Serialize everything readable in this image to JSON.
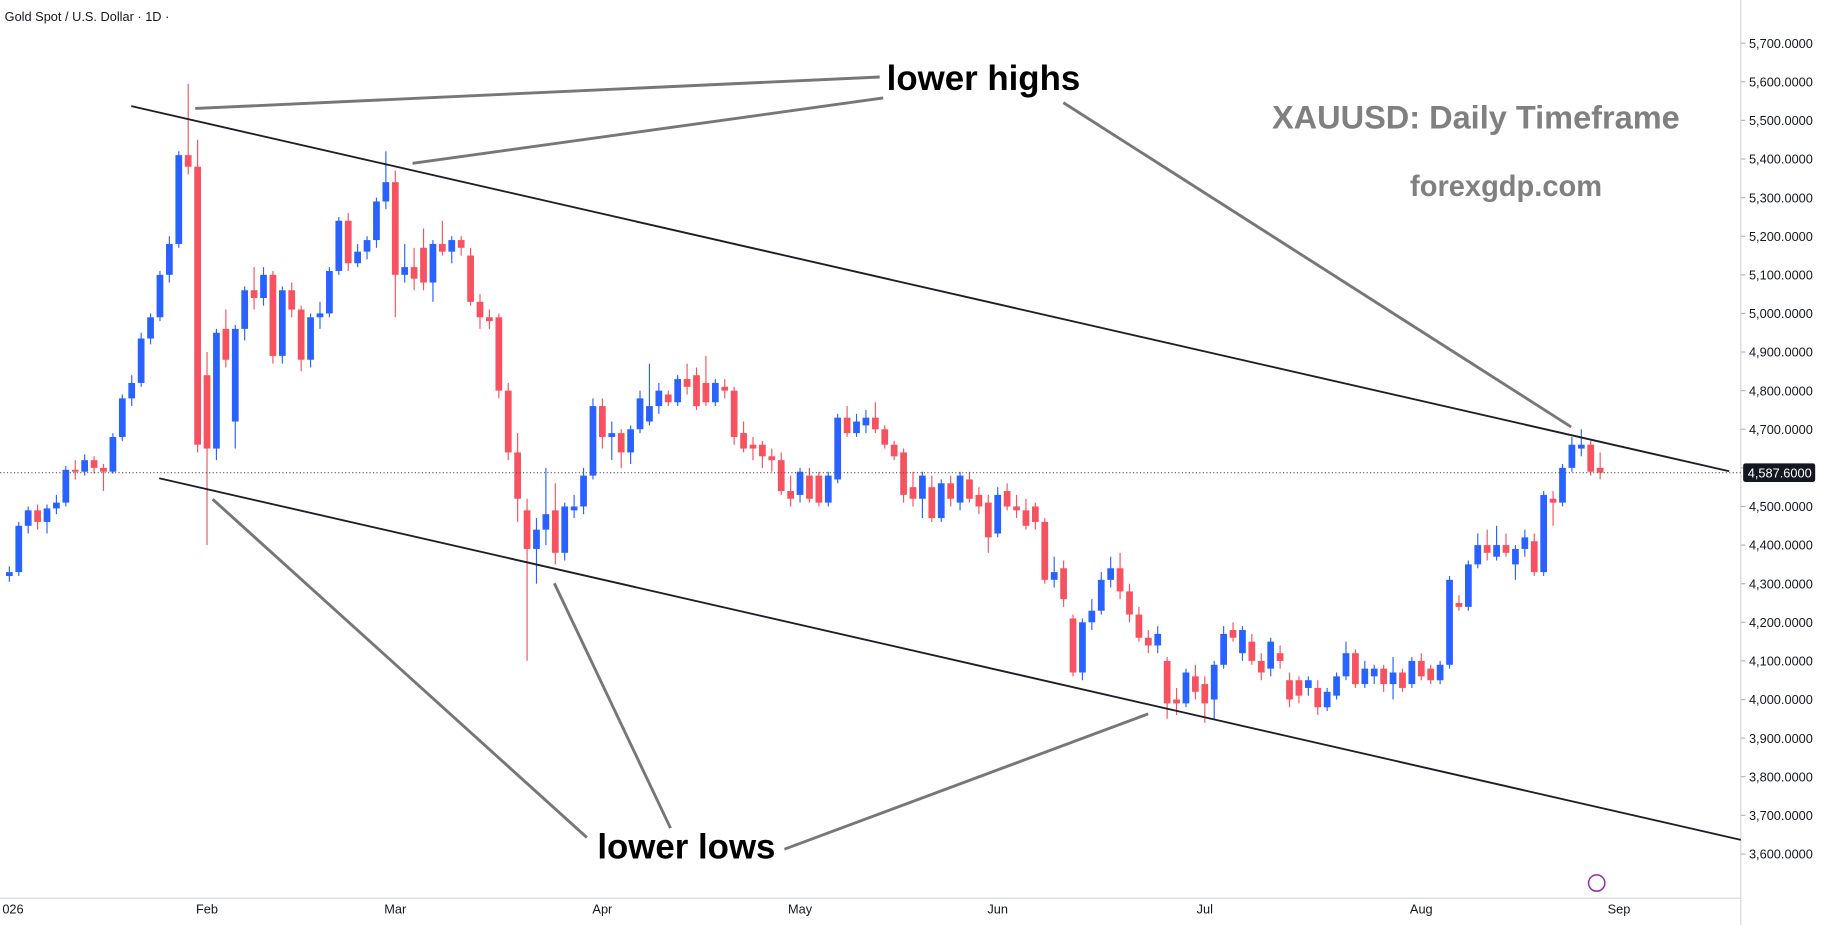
{
  "chart_data": {
    "type": "candlestick",
    "title": "Gold Spot / U.S. Dollar · 1D ·",
    "annotations": {
      "lower_highs": "lower highs",
      "lower_lows": "lower lows",
      "watermark": "XAUUSD: Daily Timeframe",
      "site": "forexgdp.com"
    },
    "up_color": "#2962ff",
    "down_color": "#f7525f",
    "grid": false,
    "ylim": [
      3485.5,
      5811.8
    ],
    "yticks": [
      {
        "value": 3600,
        "label": "3,600.0000"
      },
      {
        "value": 3700,
        "label": "3,700.0000"
      },
      {
        "value": 3800,
        "label": "3,800.0000"
      },
      {
        "value": 3900,
        "label": "3,900.0000"
      },
      {
        "value": 4000,
        "label": "4,000.0000"
      },
      {
        "value": 4100,
        "label": "4,100.0000"
      },
      {
        "value": 4200,
        "label": "4,200.0000"
      },
      {
        "value": 4300,
        "label": "4,300.0000"
      },
      {
        "value": 4400,
        "label": "4,400.0000"
      },
      {
        "value": 4500,
        "label": "4,500.0000"
      },
      {
        "value": 4600,
        "label": "4,600.0000"
      },
      {
        "value": 4700,
        "label": "4,700.0000"
      },
      {
        "value": 4800,
        "label": "4,800.0000"
      },
      {
        "value": 4900,
        "label": "4,900.0000"
      },
      {
        "value": 5000,
        "label": "5,000.0000"
      },
      {
        "value": 5100,
        "label": "5,100.0000"
      },
      {
        "value": 5200,
        "label": "5,200.0000"
      },
      {
        "value": 5300,
        "label": "5,300.0000"
      },
      {
        "value": 5400,
        "label": "5,400.0000"
      },
      {
        "value": 5500,
        "label": "5,500.0000"
      },
      {
        "value": 5600,
        "label": "5,600.0000"
      },
      {
        "value": 5700,
        "label": "5,700.0000"
      }
    ],
    "last_price": {
      "value": 4587.6,
      "label": "4,587.6000"
    },
    "categories": [
      "026",
      null,
      null,
      null,
      null,
      null,
      null,
      null,
      null,
      null,
      null,
      null,
      null,
      null,
      null,
      null,
      null,
      null,
      null,
      null,
      null,
      "Feb",
      null,
      null,
      null,
      null,
      null,
      null,
      null,
      null,
      null,
      null,
      null,
      null,
      null,
      null,
      null,
      null,
      null,
      null,
      null,
      "Mar",
      null,
      null,
      null,
      null,
      null,
      null,
      null,
      null,
      null,
      null,
      null,
      null,
      null,
      null,
      null,
      null,
      null,
      null,
      null,
      null,
      null,
      "Apr",
      null,
      null,
      null,
      null,
      null,
      null,
      null,
      null,
      null,
      null,
      null,
      null,
      null,
      null,
      null,
      null,
      null,
      null,
      null,
      null,
      "May",
      null,
      null,
      null,
      null,
      null,
      null,
      null,
      null,
      null,
      null,
      null,
      null,
      null,
      null,
      null,
      null,
      null,
      null,
      null,
      null,
      "Jun",
      null,
      null,
      null,
      null,
      null,
      null,
      null,
      null,
      null,
      null,
      null,
      null,
      null,
      null,
      null,
      null,
      null,
      null,
      null,
      null,
      null,
      "Jul",
      null,
      null,
      null,
      null,
      null,
      null,
      null,
      null,
      null,
      null,
      null,
      null,
      null,
      null,
      null,
      null,
      null,
      null,
      null,
      null,
      null,
      null,
      "Aug",
      null,
      null,
      null,
      null,
      null,
      null,
      null,
      null,
      null,
      null,
      null,
      null,
      null,
      null,
      null,
      null,
      null,
      null,
      null,
      null,
      "Sep",
      null,
      null,
      null,
      null,
      null,
      null,
      null,
      null,
      null,
      null,
      null,
      null
    ],
    "open": [
      4320,
      4330,
      4450,
      4490,
      4460,
      4495,
      4510,
      4595,
      4590,
      4620,
      4600,
      4590,
      4680,
      4780,
      4820,
      4935,
      4990,
      5100,
      5180,
      5410,
      5380,
      4840,
      4650,
      4960,
      4720,
      4960,
      5060,
      5040,
      5100,
      4890,
      5060,
      5010,
      4880,
      4990,
      5000,
      5110,
      5240,
      5130,
      5160,
      5190,
      5290,
      5340,
      5100,
      5120,
      5170,
      5080,
      5180,
      5160,
      5190,
      5150,
      5030,
      4990,
      4990,
      4800,
      4640,
      4490,
      4390,
      4440,
      4490,
      4380,
      4490,
      4500,
      4580,
      4760,
      4680,
      4690,
      4640,
      4700,
      4720,
      4760,
      4790,
      4770,
      4830,
      4840,
      4820,
      4770,
      4810,
      4800,
      4690,
      4660,
      4660,
      4630,
      4620,
      4540,
      4530,
      4580,
      4580,
      4510,
      4570,
      4730,
      4690,
      4710,
      4730,
      4700,
      4660,
      4640,
      4550,
      4520,
      4550,
      4470,
      4560,
      4510,
      4570,
      4530,
      4510,
      4430,
      4540,
      4500,
      4490,
      4500,
      4460,
      4310,
      4340,
      4210,
      4070,
      4200,
      4230,
      4310,
      4340,
      4280,
      4220,
      4160,
      4140,
      4100,
      4000,
      3990,
      4060,
      4040,
      4000,
      4090,
      4180,
      4120,
      4150,
      4100,
      4080,
      4120,
      4050,
      4050,
      4030,
      4030,
      3980,
      4010,
      4060,
      4120,
      4040,
      4060,
      4080,
      4040,
      4070,
      4040,
      4100,
      4080,
      4050,
      4090,
      4250,
      4240,
      4350,
      4400,
      4370,
      4400,
      4350,
      4390,
      4410,
      4330,
      4520,
      4510,
      4600,
      4650,
      4660,
      4600,
      null,
      null,
      null,
      null,
      null,
      null,
      null,
      null,
      null,
      null,
      null,
      null,
      null,
      null
    ],
    "high": [
      4345,
      4460,
      4500,
      4505,
      4505,
      4530,
      4605,
      4620,
      4635,
      4630,
      4610,
      4690,
      4790,
      4840,
      4950,
      5000,
      5110,
      5200,
      5420,
      5595,
      5450,
      4900,
      4960,
      5010,
      4970,
      5070,
      5120,
      5120,
      5110,
      5070,
      5080,
      5020,
      5000,
      5030,
      5120,
      5250,
      5260,
      5180,
      5200,
      5300,
      5420,
      5370,
      5180,
      5170,
      5220,
      5190,
      5240,
      5200,
      5200,
      5170,
      5050,
      5010,
      5000,
      4820,
      4690,
      4520,
      4470,
      4600,
      4560,
      4510,
      4530,
      4600,
      4780,
      4780,
      4720,
      4700,
      4710,
      4800,
      4870,
      4820,
      4800,
      4840,
      4870,
      4860,
      4890,
      4830,
      4830,
      4810,
      4720,
      4680,
      4670,
      4650,
      4640,
      4580,
      4600,
      4600,
      4590,
      4590,
      4740,
      4760,
      4740,
      4750,
      4770,
      4710,
      4670,
      4650,
      4590,
      4590,
      4580,
      4570,
      4580,
      4590,
      4590,
      4550,
      4530,
      4550,
      4560,
      4530,
      4520,
      4510,
      4470,
      4370,
      4360,
      4220,
      4210,
      4260,
      4330,
      4370,
      4380,
      4300,
      4240,
      4180,
      4190,
      4110,
      4030,
      4080,
      4090,
      4060,
      4100,
      4190,
      4200,
      4190,
      4170,
      4120,
      4160,
      4140,
      4070,
      4060,
      4060,
      4050,
      4030,
      4070,
      4150,
      4130,
      4100,
      4090,
      4090,
      4110,
      4080,
      4110,
      4120,
      4090,
      4100,
      4320,
      4270,
      4360,
      4430,
      4440,
      4450,
      4430,
      4400,
      4440,
      4430,
      4540,
      4540,
      4610,
      4680,
      4700,
      4670,
      4640,
      null,
      null,
      null,
      null,
      null,
      null,
      null,
      null,
      null,
      null,
      null,
      null,
      null,
      null
    ],
    "low": [
      4305,
      4320,
      4430,
      4440,
      4430,
      4480,
      4500,
      4570,
      4580,
      4585,
      4540,
      4585,
      4670,
      4760,
      4810,
      4920,
      4980,
      5080,
      5170,
      5360,
      4640,
      4400,
      4620,
      4860,
      4650,
      4930,
      5010,
      5020,
      4870,
      4870,
      4990,
      4850,
      4860,
      4960,
      4990,
      5100,
      5110,
      5120,
      5140,
      5170,
      5270,
      4990,
      5080,
      5060,
      5060,
      5030,
      5150,
      5130,
      5150,
      5020,
      4960,
      4960,
      4780,
      4620,
      4460,
      4100,
      4300,
      4400,
      4350,
      4360,
      4470,
      4480,
      4570,
      4650,
      4620,
      4600,
      4610,
      4690,
      4710,
      4740,
      4760,
      4760,
      4790,
      4750,
      4760,
      4760,
      4780,
      4660,
      4640,
      4620,
      4600,
      4590,
      4530,
      4500,
      4510,
      4510,
      4500,
      4500,
      4560,
      4680,
      4680,
      4690,
      4690,
      4650,
      4620,
      4510,
      4500,
      4470,
      4460,
      4460,
      4500,
      4490,
      4510,
      4480,
      4380,
      4420,
      4490,
      4470,
      4440,
      4440,
      4300,
      4290,
      4240,
      4060,
      4050,
      4180,
      4220,
      4290,
      4260,
      4200,
      4150,
      4120,
      4120,
      3950,
      3960,
      3980,
      4000,
      3940,
      3950,
      4080,
      4150,
      4100,
      4090,
      4050,
      4060,
      4080,
      3980,
      3990,
      4010,
      3960,
      3970,
      4000,
      4050,
      4030,
      4030,
      4040,
      4020,
      4000,
      4020,
      4030,
      4050,
      4040,
      4040,
      4080,
      4230,
      4230,
      4340,
      4360,
      4360,
      4370,
      4310,
      4370,
      4320,
      4320,
      4450,
      4500,
      4590,
      4630,
      4580,
      4570,
      null,
      null,
      null,
      null,
      null,
      null,
      null,
      null,
      null,
      null,
      null,
      null,
      null,
      null
    ],
    "close": [
      4330,
      4450,
      4490,
      4460,
      4495,
      4510,
      4595,
      4590,
      4620,
      4600,
      4590,
      4680,
      4780,
      4820,
      4935,
      4990,
      5100,
      5180,
      5410,
      5380,
      4660,
      4650,
      4950,
      4880,
      4960,
      5060,
      5040,
      5100,
      4890,
      5060,
      5010,
      4880,
      4990,
      5000,
      5110,
      5240,
      5130,
      5160,
      5190,
      5290,
      5340,
      5100,
      5120,
      5090,
      5080,
      5180,
      5160,
      5190,
      5170,
      5030,
      4990,
      4980,
      4800,
      4640,
      4520,
      4390,
      4440,
      4480,
      4380,
      4500,
      4500,
      4580,
      4760,
      4680,
      4690,
      4640,
      4700,
      4780,
      4760,
      4800,
      4770,
      4830,
      4810,
      4760,
      4770,
      4820,
      4800,
      4680,
      4650,
      4650,
      4630,
      4620,
      4540,
      4520,
      4590,
      4520,
      4510,
      4580,
      4730,
      4690,
      4720,
      4730,
      4700,
      4660,
      4630,
      4530,
      4520,
      4580,
      4470,
      4560,
      4520,
      4580,
      4520,
      4500,
      4420,
      4530,
      4500,
      4490,
      4450,
      4460,
      4310,
      4330,
      4260,
      4070,
      4200,
      4230,
      4310,
      4340,
      4280,
      4220,
      4160,
      4140,
      4170,
      3990,
      3990,
      4070,
      4020,
      3990,
      4090,
      4170,
      4160,
      4180,
      4100,
      4070,
      4150,
      4100,
      4000,
      4010,
      4050,
      3980,
      4020,
      4060,
      4120,
      4040,
      4080,
      4080,
      4040,
      4070,
      4030,
      4100,
      4060,
      4050,
      4090,
      4310,
      4240,
      4350,
      4400,
      4380,
      4400,
      4380,
      4390,
      4420,
      4330,
      4530,
      4510,
      4600,
      4660,
      4660,
      4590,
      4587.6,
      null,
      null,
      null,
      null,
      null,
      null,
      null,
      null,
      null,
      null,
      null,
      null,
      null,
      null
    ]
  }
}
